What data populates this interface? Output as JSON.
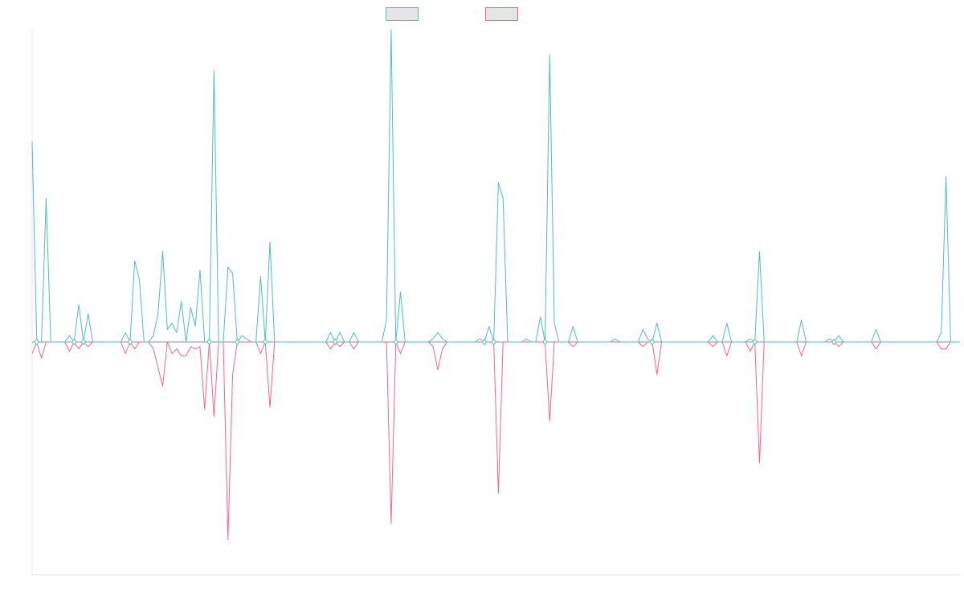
{
  "colors": {
    "series_up": "#4bc0c0",
    "series_down": "#ff6384",
    "legend_fill": "#e5e5e5",
    "axis": "#e5e5e5",
    "baseline": "#8c8c9a"
  },
  "legend": {
    "placement": "top-center"
  },
  "chart_data": {
    "type": "line",
    "title": "",
    "xlabel": "",
    "ylabel": "",
    "x_count": 200,
    "ylim": [
      -1.0,
      1.0
    ],
    "grid": false,
    "axes_visible": false,
    "series": [
      {
        "color": "#4bc0c0",
        "points": [
          [
            0,
            0.64
          ],
          [
            1,
            0.0
          ],
          [
            2,
            0.0
          ],
          [
            3,
            0.46
          ],
          [
            4,
            0.0
          ],
          [
            8,
            0.02
          ],
          [
            10,
            0.12
          ],
          [
            11,
            0.0
          ],
          [
            12,
            0.09
          ],
          [
            13,
            0.0
          ],
          [
            20,
            0.03
          ],
          [
            22,
            0.26
          ],
          [
            23,
            0.2
          ],
          [
            24,
            0.0
          ],
          [
            26,
            0.02
          ],
          [
            27,
            0.09
          ],
          [
            28,
            0.29
          ],
          [
            29,
            0.04
          ],
          [
            30,
            0.06
          ],
          [
            31,
            0.03
          ],
          [
            32,
            0.13
          ],
          [
            33,
            0.0
          ],
          [
            34,
            0.11
          ],
          [
            35,
            0.05
          ],
          [
            36,
            0.23
          ],
          [
            37,
            0.0
          ],
          [
            38,
            0.0
          ],
          [
            39,
            0.87
          ],
          [
            40,
            0.0
          ],
          [
            42,
            0.24
          ],
          [
            43,
            0.22
          ],
          [
            44,
            0.0
          ],
          [
            45,
            0.02
          ],
          [
            46,
            0.01
          ],
          [
            47,
            0.0
          ],
          [
            49,
            0.21
          ],
          [
            50,
            0.0
          ],
          [
            51,
            0.32
          ],
          [
            52,
            0.0
          ],
          [
            64,
            0.03
          ],
          [
            66,
            0.03
          ],
          [
            69,
            0.03
          ],
          [
            76,
            0.07
          ],
          [
            77,
            1.0
          ],
          [
            78,
            0.0
          ],
          [
            79,
            0.16
          ],
          [
            80,
            0.0
          ],
          [
            86,
            0.01
          ],
          [
            87,
            0.03
          ],
          [
            88,
            0.01
          ],
          [
            96,
            0.01
          ],
          [
            98,
            0.05
          ],
          [
            99,
            0.0
          ],
          [
            100,
            0.51
          ],
          [
            101,
            0.46
          ],
          [
            102,
            0.0
          ],
          [
            106,
            0.01
          ],
          [
            109,
            0.08
          ],
          [
            110,
            0.0
          ],
          [
            111,
            0.92
          ],
          [
            112,
            0.06
          ],
          [
            113,
            0.0
          ],
          [
            116,
            0.05
          ],
          [
            117,
            0.0
          ],
          [
            125,
            0.01
          ],
          [
            131,
            0.04
          ],
          [
            132,
            0.01
          ],
          [
            134,
            0.06
          ],
          [
            135,
            0.0
          ],
          [
            146,
            0.02
          ],
          [
            149,
            0.06
          ],
          [
            150,
            0.0
          ],
          [
            154,
            0.01
          ],
          [
            156,
            0.29
          ],
          [
            157,
            0.0
          ],
          [
            165,
            0.07
          ],
          [
            166,
            0.0
          ],
          [
            171,
            0.01
          ],
          [
            173,
            0.02
          ],
          [
            181,
            0.04
          ],
          [
            182,
            0.0
          ],
          [
            195,
            0.03
          ],
          [
            196,
            0.53
          ],
          [
            199,
            0.0
          ]
        ]
      },
      {
        "color": "#ff6384",
        "points": [
          [
            0,
            -0.05
          ],
          [
            1,
            0.0
          ],
          [
            2,
            -0.07
          ],
          [
            3,
            0.0
          ],
          [
            8,
            -0.04
          ],
          [
            10,
            -0.03
          ],
          [
            11,
            0.0
          ],
          [
            12,
            -0.02
          ],
          [
            13,
            0.0
          ],
          [
            20,
            -0.05
          ],
          [
            22,
            -0.03
          ],
          [
            23,
            0.0
          ],
          [
            26,
            -0.03
          ],
          [
            27,
            -0.11
          ],
          [
            28,
            -0.19
          ],
          [
            29,
            0.0
          ],
          [
            30,
            -0.05
          ],
          [
            31,
            -0.03
          ],
          [
            32,
            -0.06
          ],
          [
            33,
            -0.06
          ],
          [
            34,
            -0.02
          ],
          [
            35,
            -0.03
          ],
          [
            36,
            -0.02
          ],
          [
            37,
            -0.29
          ],
          [
            38,
            0.0
          ],
          [
            39,
            -0.32
          ],
          [
            40,
            0.0
          ],
          [
            42,
            -0.85
          ],
          [
            43,
            -0.14
          ],
          [
            44,
            0.0
          ],
          [
            49,
            -0.05
          ],
          [
            50,
            0.0
          ],
          [
            51,
            -0.28
          ],
          [
            52,
            0.0
          ],
          [
            64,
            -0.03
          ],
          [
            66,
            -0.02
          ],
          [
            69,
            -0.03
          ],
          [
            77,
            -0.78
          ],
          [
            78,
            0.0
          ],
          [
            79,
            -0.05
          ],
          [
            80,
            0.0
          ],
          [
            86,
            -0.02
          ],
          [
            87,
            -0.12
          ],
          [
            88,
            -0.03
          ],
          [
            89,
            0.0
          ],
          [
            100,
            -0.65
          ],
          [
            101,
            0.0
          ],
          [
            111,
            -0.34
          ],
          [
            112,
            0.0
          ],
          [
            116,
            -0.02
          ],
          [
            117,
            0.0
          ],
          [
            131,
            -0.02
          ],
          [
            132,
            0.0
          ],
          [
            134,
            -0.14
          ],
          [
            135,
            0.0
          ],
          [
            146,
            -0.02
          ],
          [
            149,
            -0.06
          ],
          [
            150,
            0.0
          ],
          [
            154,
            -0.04
          ],
          [
            156,
            -0.52
          ],
          [
            157,
            0.0
          ],
          [
            165,
            -0.06
          ],
          [
            166,
            0.0
          ],
          [
            173,
            -0.02
          ],
          [
            174,
            0.0
          ],
          [
            181,
            -0.03
          ],
          [
            182,
            0.0
          ],
          [
            195,
            -0.03
          ],
          [
            196,
            -0.03
          ],
          [
            199,
            0.0
          ]
        ]
      }
    ]
  }
}
